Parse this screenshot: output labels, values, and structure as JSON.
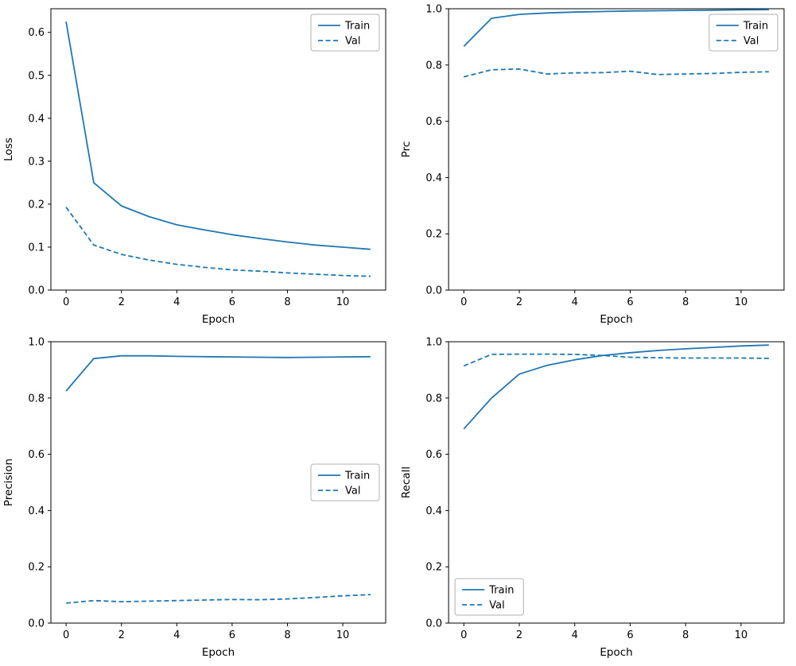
{
  "figure": {
    "background": "#ffffff",
    "line_color": "#1f77b4",
    "axis_color": "#000000",
    "legend_border": "#b0b0b0"
  },
  "chart_data": [
    {
      "type": "line",
      "title": "",
      "xlabel": "Epoch",
      "ylabel": "Loss",
      "x": [
        0,
        1,
        2,
        3,
        4,
        5,
        6,
        7,
        8,
        9,
        10,
        11
      ],
      "xlim": [
        -0.55,
        11.55
      ],
      "ylim": [
        0,
        0.655
      ],
      "xticks": [
        0,
        2,
        4,
        6,
        8,
        10
      ],
      "xtick_labels": [
        "0",
        "2",
        "4",
        "6",
        "8",
        "10"
      ],
      "yticks": [
        0.0,
        0.1,
        0.2,
        0.3,
        0.4,
        0.5,
        0.6
      ],
      "ytick_labels": [
        "0.0",
        "0.1",
        "0.2",
        "0.3",
        "0.4",
        "0.5",
        "0.6"
      ],
      "grid": false,
      "legend": {
        "position": "upper-right",
        "entries": [
          "Train",
          "Val"
        ]
      },
      "series": [
        {
          "name": "Train",
          "style": "solid",
          "values": [
            0.625,
            0.25,
            0.196,
            0.171,
            0.152,
            0.14,
            0.129,
            0.12,
            0.112,
            0.105,
            0.1,
            0.095
          ]
        },
        {
          "name": "Val",
          "style": "dashed",
          "values": [
            0.193,
            0.105,
            0.083,
            0.07,
            0.06,
            0.053,
            0.047,
            0.044,
            0.04,
            0.037,
            0.034,
            0.032
          ]
        }
      ]
    },
    {
      "type": "line",
      "title": "",
      "xlabel": "Epoch",
      "ylabel": "Prc",
      "x": [
        0,
        1,
        2,
        3,
        4,
        5,
        6,
        7,
        8,
        9,
        10,
        11
      ],
      "xlim": [
        -0.55,
        11.55
      ],
      "ylim": [
        0,
        1.0
      ],
      "xticks": [
        0,
        2,
        4,
        6,
        8,
        10
      ],
      "xtick_labels": [
        "0",
        "2",
        "4",
        "6",
        "8",
        "10"
      ],
      "yticks": [
        0.0,
        0.2,
        0.4,
        0.6,
        0.8,
        1.0
      ],
      "ytick_labels": [
        "0.0",
        "0.2",
        "0.4",
        "0.6",
        "0.8",
        "1.0"
      ],
      "grid": false,
      "legend": {
        "position": "upper-right",
        "entries": [
          "Train",
          "Val"
        ]
      },
      "series": [
        {
          "name": "Train",
          "style": "solid",
          "values": [
            0.866,
            0.966,
            0.98,
            0.985,
            0.988,
            0.99,
            0.992,
            0.993,
            0.994,
            0.995,
            0.996,
            0.997
          ]
        },
        {
          "name": "Val",
          "style": "dashed",
          "values": [
            0.758,
            0.783,
            0.786,
            0.768,
            0.772,
            0.773,
            0.778,
            0.766,
            0.768,
            0.77,
            0.774,
            0.776
          ]
        }
      ]
    },
    {
      "type": "line",
      "title": "",
      "xlabel": "Epoch",
      "ylabel": "Precision",
      "x": [
        0,
        1,
        2,
        3,
        4,
        5,
        6,
        7,
        8,
        9,
        10,
        11
      ],
      "xlim": [
        -0.55,
        11.55
      ],
      "ylim": [
        0,
        1.0
      ],
      "xticks": [
        0,
        2,
        4,
        6,
        8,
        10
      ],
      "xtick_labels": [
        "0",
        "2",
        "4",
        "6",
        "8",
        "10"
      ],
      "yticks": [
        0.0,
        0.2,
        0.4,
        0.6,
        0.8,
        1.0
      ],
      "ytick_labels": [
        "0.0",
        "0.2",
        "0.4",
        "0.6",
        "0.8",
        "1.0"
      ],
      "grid": false,
      "legend": {
        "position": "center-right",
        "entries": [
          "Train",
          "Val"
        ]
      },
      "series": [
        {
          "name": "Train",
          "style": "solid",
          "values": [
            0.825,
            0.94,
            0.95,
            0.95,
            0.948,
            0.947,
            0.946,
            0.945,
            0.944,
            0.945,
            0.946,
            0.947
          ]
        },
        {
          "name": "Val",
          "style": "dashed",
          "values": [
            0.071,
            0.08,
            0.076,
            0.078,
            0.08,
            0.082,
            0.084,
            0.083,
            0.086,
            0.091,
            0.097,
            0.101
          ]
        }
      ]
    },
    {
      "type": "line",
      "title": "",
      "xlabel": "Epoch",
      "ylabel": "Recall",
      "x": [
        0,
        1,
        2,
        3,
        4,
        5,
        6,
        7,
        8,
        9,
        10,
        11
      ],
      "xlim": [
        -0.55,
        11.55
      ],
      "ylim": [
        0,
        1.0
      ],
      "xticks": [
        0,
        2,
        4,
        6,
        8,
        10
      ],
      "xtick_labels": [
        "0",
        "2",
        "4",
        "6",
        "8",
        "10"
      ],
      "yticks": [
        0.0,
        0.2,
        0.4,
        0.6,
        0.8,
        1.0
      ],
      "ytick_labels": [
        "0.0",
        "0.2",
        "0.4",
        "0.6",
        "0.8",
        "1.0"
      ],
      "grid": false,
      "legend": {
        "position": "lower-left",
        "entries": [
          "Train",
          "Val"
        ]
      },
      "series": [
        {
          "name": "Train",
          "style": "solid",
          "values": [
            0.69,
            0.8,
            0.885,
            0.916,
            0.936,
            0.951,
            0.961,
            0.969,
            0.975,
            0.98,
            0.985,
            0.988
          ]
        },
        {
          "name": "Val",
          "style": "dashed",
          "values": [
            0.914,
            0.955,
            0.956,
            0.956,
            0.955,
            0.951,
            0.945,
            0.943,
            0.942,
            0.942,
            0.942,
            0.941
          ]
        }
      ]
    }
  ]
}
